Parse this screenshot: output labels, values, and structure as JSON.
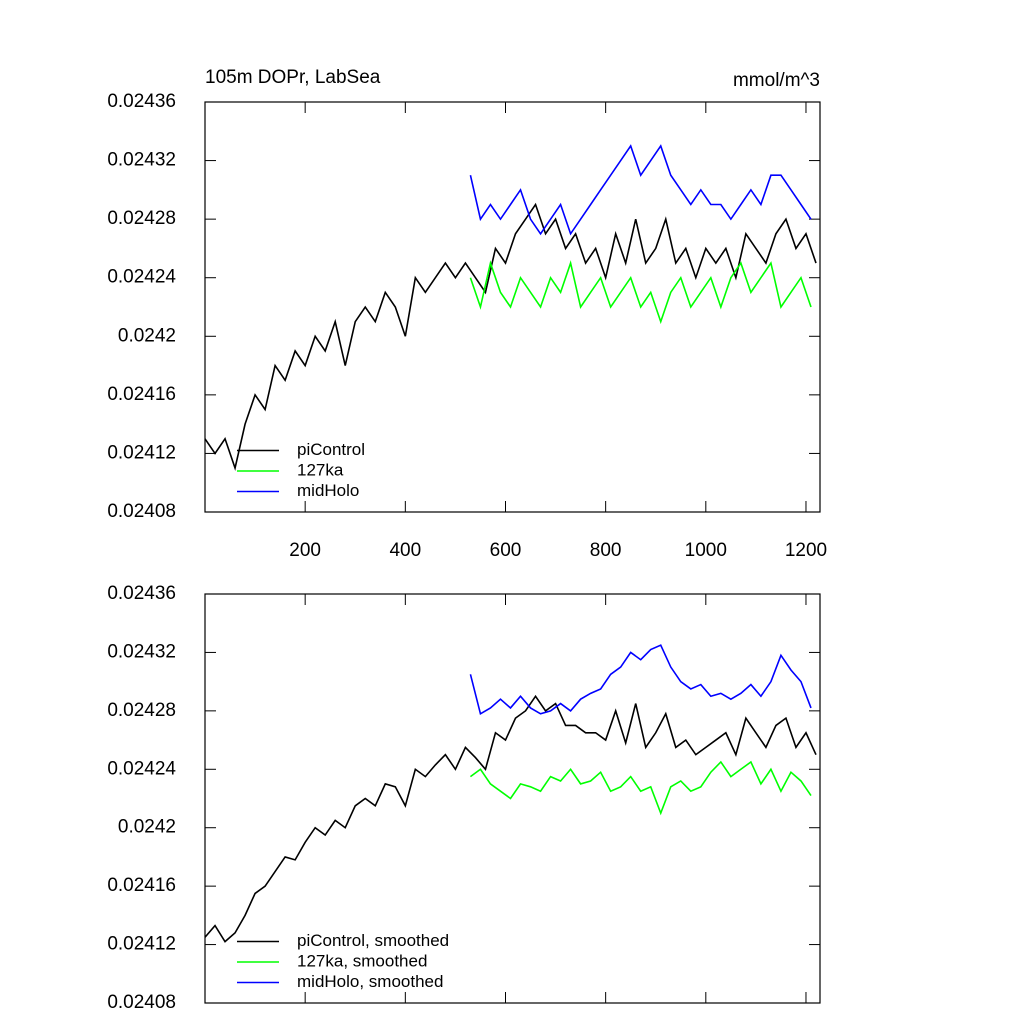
{
  "chart_data": [
    {
      "type": "line",
      "title": "105m DOPr, LabSea",
      "units": "mmol/m^3",
      "xlim": [
        0,
        1228
      ],
      "xticks": [
        200,
        400,
        600,
        800,
        1000,
        1200
      ],
      "xtick_labels": true,
      "ylim": [
        0.02408,
        0.02436
      ],
      "yticks": [
        0.02408,
        0.02412,
        0.02416,
        0.0242,
        0.02424,
        0.02428,
        0.02432,
        0.02436
      ],
      "legend": "bottom-left",
      "series": [
        {
          "name": "piControl",
          "color": "#000000",
          "x": [
            0,
            20,
            40,
            60,
            80,
            100,
            120,
            140,
            160,
            180,
            200,
            220,
            240,
            260,
            280,
            300,
            320,
            340,
            360,
            380,
            400,
            420,
            440,
            460,
            480,
            500,
            520,
            540,
            560,
            580,
            600,
            620,
            640,
            660,
            680,
            700,
            720,
            740,
            760,
            780,
            800,
            820,
            840,
            860,
            880,
            900,
            920,
            940,
            960,
            980,
            1000,
            1020,
            1040,
            1060,
            1080,
            1100,
            1120,
            1140,
            1160,
            1180,
            1200,
            1220
          ],
          "values": [
            0.02413,
            0.02412,
            0.02413,
            0.02411,
            0.02414,
            0.02416,
            0.02415,
            0.02418,
            0.02417,
            0.02419,
            0.02418,
            0.0242,
            0.02419,
            0.02421,
            0.02418,
            0.02421,
            0.02422,
            0.02421,
            0.02423,
            0.02422,
            0.0242,
            0.02424,
            0.02423,
            0.02424,
            0.02425,
            0.02424,
            0.02425,
            0.02424,
            0.02423,
            0.02426,
            0.02425,
            0.02427,
            0.02428,
            0.02429,
            0.02427,
            0.02428,
            0.02426,
            0.02427,
            0.02425,
            0.02426,
            0.02424,
            0.02427,
            0.02425,
            0.02428,
            0.02425,
            0.02426,
            0.02428,
            0.02425,
            0.02426,
            0.02424,
            0.02426,
            0.02425,
            0.02426,
            0.02424,
            0.02427,
            0.02426,
            0.02425,
            0.02427,
            0.02428,
            0.02426,
            0.02427,
            0.02425
          ]
        },
        {
          "name": "127ka",
          "color": "#00ff00",
          "x": [
            530,
            550,
            570,
            590,
            610,
            630,
            650,
            670,
            690,
            710,
            730,
            750,
            770,
            790,
            810,
            830,
            850,
            870,
            890,
            910,
            930,
            950,
            970,
            990,
            1010,
            1030,
            1050,
            1070,
            1090,
            1110,
            1130,
            1150,
            1170,
            1190,
            1210
          ],
          "values": [
            0.02424,
            0.02422,
            0.02425,
            0.02423,
            0.02422,
            0.02424,
            0.02423,
            0.02422,
            0.02424,
            0.02423,
            0.02425,
            0.02422,
            0.02423,
            0.02424,
            0.02422,
            0.02423,
            0.02424,
            0.02422,
            0.02423,
            0.02421,
            0.02423,
            0.02424,
            0.02422,
            0.02423,
            0.02424,
            0.02422,
            0.02424,
            0.02425,
            0.02423,
            0.02424,
            0.02425,
            0.02422,
            0.02423,
            0.02424,
            0.02422
          ]
        },
        {
          "name": "midHolo",
          "color": "#0000ff",
          "x": [
            530,
            550,
            570,
            590,
            610,
            630,
            650,
            670,
            690,
            710,
            730,
            750,
            770,
            790,
            810,
            830,
            850,
            870,
            890,
            910,
            930,
            950,
            970,
            990,
            1010,
            1030,
            1050,
            1070,
            1090,
            1110,
            1130,
            1150,
            1170,
            1190,
            1210
          ],
          "values": [
            0.02431,
            0.02428,
            0.02429,
            0.02428,
            0.02429,
            0.0243,
            0.02428,
            0.02427,
            0.02428,
            0.02429,
            0.02427,
            0.02428,
            0.02429,
            0.0243,
            0.02431,
            0.02432,
            0.02433,
            0.02431,
            0.02432,
            0.02433,
            0.02431,
            0.0243,
            0.02429,
            0.0243,
            0.02429,
            0.02429,
            0.02428,
            0.02429,
            0.0243,
            0.02429,
            0.02431,
            0.02431,
            0.0243,
            0.02429,
            0.02428
          ]
        }
      ]
    },
    {
      "type": "line",
      "xlim": [
        0,
        1228
      ],
      "xticks": [
        200,
        400,
        600,
        800,
        1000,
        1200
      ],
      "xtick_labels": false,
      "ylim": [
        0.02408,
        0.02436
      ],
      "yticks": [
        0.02408,
        0.02412,
        0.02416,
        0.0242,
        0.02424,
        0.02428,
        0.02432,
        0.02436
      ],
      "legend": "bottom-left",
      "series": [
        {
          "name": "piControl, smoothed",
          "color": "#000000",
          "x": [
            0,
            20,
            40,
            60,
            80,
            100,
            120,
            140,
            160,
            180,
            200,
            220,
            240,
            260,
            280,
            300,
            320,
            340,
            360,
            380,
            400,
            420,
            440,
            460,
            480,
            500,
            520,
            540,
            560,
            580,
            600,
            620,
            640,
            660,
            680,
            700,
            720,
            740,
            760,
            780,
            800,
            820,
            840,
            860,
            880,
            900,
            920,
            940,
            960,
            980,
            1000,
            1020,
            1040,
            1060,
            1080,
            1100,
            1120,
            1140,
            1160,
            1180,
            1200,
            1220
          ],
          "values": [
            0.024125,
            0.024133,
            0.024122,
            0.024128,
            0.02414,
            0.024155,
            0.02416,
            0.02417,
            0.02418,
            0.024178,
            0.02419,
            0.0242,
            0.024195,
            0.024205,
            0.0242,
            0.024215,
            0.02422,
            0.024215,
            0.02423,
            0.024228,
            0.024215,
            0.02424,
            0.024235,
            0.024243,
            0.02425,
            0.02424,
            0.024255,
            0.024248,
            0.02424,
            0.024265,
            0.02426,
            0.024275,
            0.02428,
            0.02429,
            0.02428,
            0.024285,
            0.02427,
            0.02427,
            0.024265,
            0.024265,
            0.02426,
            0.02428,
            0.024258,
            0.024285,
            0.024255,
            0.024265,
            0.024278,
            0.024255,
            0.02426,
            0.02425,
            0.024255,
            0.02426,
            0.024265,
            0.02425,
            0.024275,
            0.024265,
            0.024255,
            0.02427,
            0.024275,
            0.024255,
            0.024265,
            0.02425
          ]
        },
        {
          "name": "127ka, smoothed",
          "color": "#00ff00",
          "x": [
            530,
            550,
            570,
            590,
            610,
            630,
            650,
            670,
            690,
            710,
            730,
            750,
            770,
            790,
            810,
            830,
            850,
            870,
            890,
            910,
            930,
            950,
            970,
            990,
            1010,
            1030,
            1050,
            1070,
            1090,
            1110,
            1130,
            1150,
            1170,
            1190,
            1210
          ],
          "values": [
            0.024235,
            0.02424,
            0.02423,
            0.024225,
            0.02422,
            0.02423,
            0.024228,
            0.024225,
            0.024235,
            0.024232,
            0.02424,
            0.02423,
            0.024232,
            0.024238,
            0.024225,
            0.024228,
            0.024235,
            0.024225,
            0.024228,
            0.02421,
            0.024228,
            0.024232,
            0.024225,
            0.024228,
            0.024238,
            0.024245,
            0.024235,
            0.02424,
            0.024245,
            0.02423,
            0.02424,
            0.024225,
            0.024238,
            0.024232,
            0.024222
          ]
        },
        {
          "name": "midHolo, smoothed",
          "color": "#0000ff",
          "x": [
            530,
            550,
            570,
            590,
            610,
            630,
            650,
            670,
            690,
            710,
            730,
            750,
            770,
            790,
            810,
            830,
            850,
            870,
            890,
            910,
            930,
            950,
            970,
            990,
            1010,
            1030,
            1050,
            1070,
            1090,
            1110,
            1130,
            1150,
            1170,
            1190,
            1210
          ],
          "values": [
            0.024305,
            0.024278,
            0.024282,
            0.024288,
            0.024282,
            0.02429,
            0.024282,
            0.024278,
            0.02428,
            0.024285,
            0.02428,
            0.024288,
            0.024292,
            0.024295,
            0.024305,
            0.02431,
            0.02432,
            0.024315,
            0.024322,
            0.024325,
            0.02431,
            0.0243,
            0.024295,
            0.024298,
            0.02429,
            0.024292,
            0.024288,
            0.024292,
            0.024298,
            0.02429,
            0.0243,
            0.024318,
            0.024308,
            0.0243,
            0.024282
          ]
        }
      ]
    }
  ]
}
